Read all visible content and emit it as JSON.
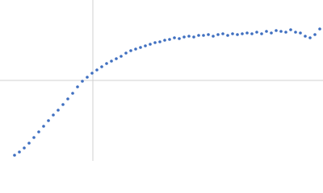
{
  "chart_data": {
    "type": "scatter",
    "x": [
      18,
      24,
      30,
      36,
      42,
      48,
      54,
      60,
      66,
      72,
      78,
      84,
      90,
      96,
      102,
      108,
      114,
      120,
      126,
      132,
      138,
      144,
      150,
      156,
      162,
      168,
      174,
      180,
      186,
      192,
      198,
      204,
      210,
      216,
      222,
      228,
      234,
      240,
      246,
      252,
      258,
      264,
      270,
      276,
      282,
      288,
      294,
      300,
      306,
      312,
      318,
      324,
      330,
      336,
      342,
      348,
      354,
      360,
      366,
      372,
      378,
      384,
      390,
      396
    ],
    "series": [
      {
        "color": "#3f6fc0",
        "values": [
          7,
          11,
          16,
          22,
          29,
          36,
          43,
          50,
          57,
          63,
          70,
          77,
          84,
          92,
          99,
          104,
          109,
          113,
          117,
          121,
          124,
          127,
          130,
          134,
          137,
          139,
          141,
          143,
          145,
          147,
          148,
          150,
          151,
          153,
          152,
          154,
          155,
          154,
          156,
          156,
          157,
          155,
          157,
          158,
          156,
          158,
          157,
          158,
          159,
          158,
          160,
          158,
          161,
          159,
          162,
          161,
          160,
          163,
          160,
          159,
          155,
          153,
          157,
          164
        ]
      }
    ],
    "xlim": [
      0,
      400
    ],
    "ylim": [
      0,
      200
    ],
    "reference_lines": {
      "x": 115,
      "y": 100
    }
  }
}
